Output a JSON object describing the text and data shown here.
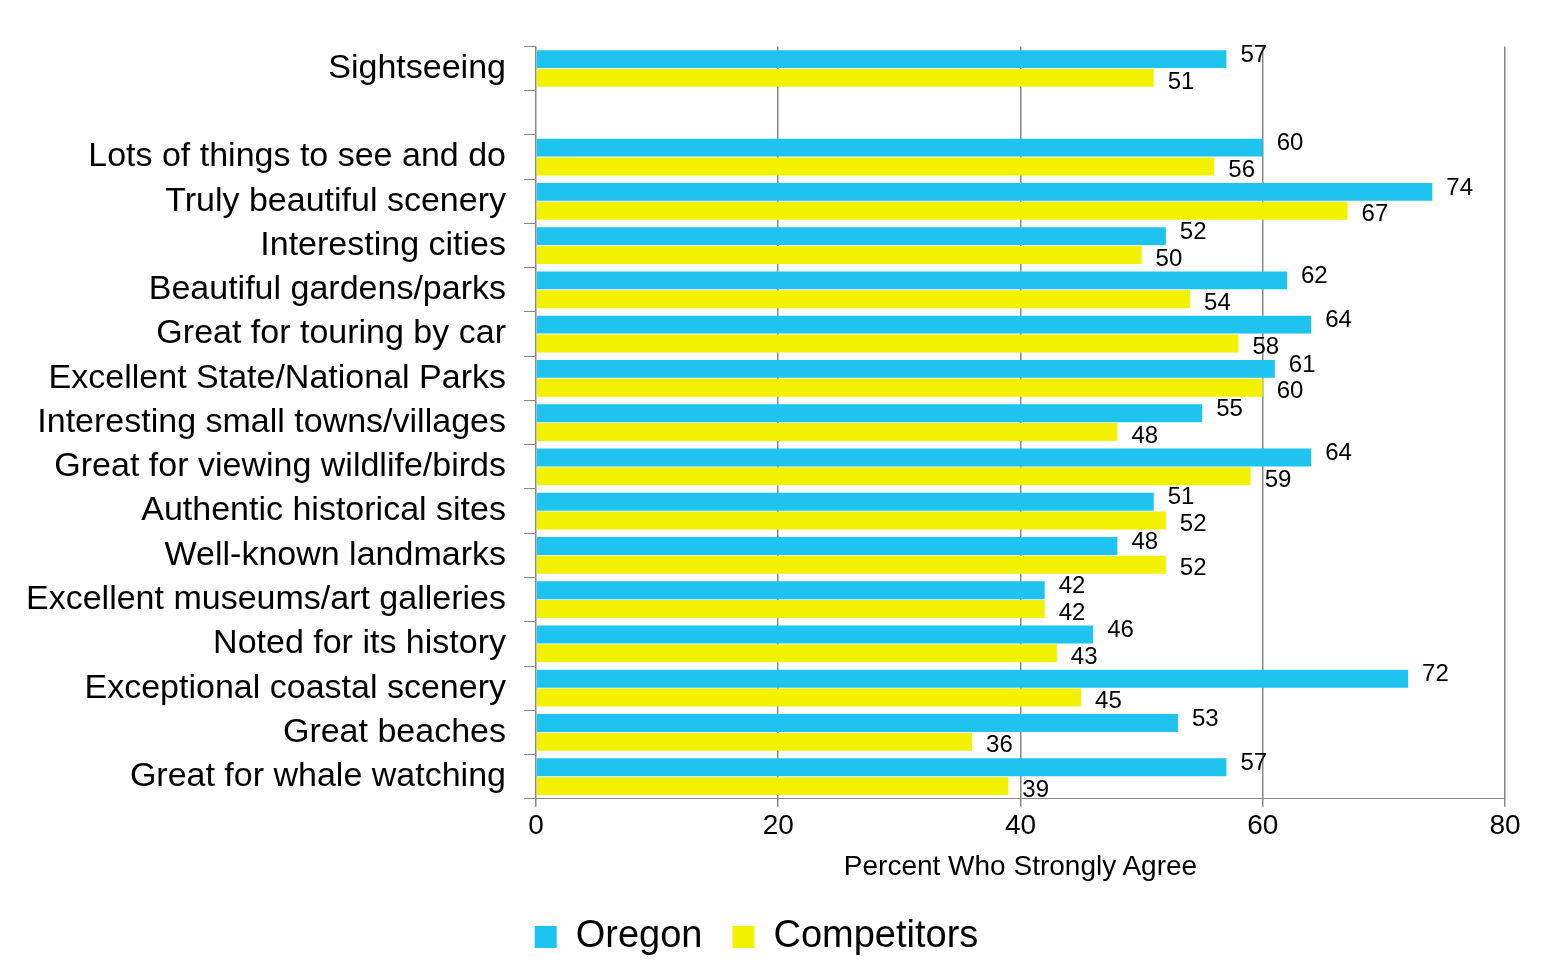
{
  "chart_data": {
    "type": "bar",
    "orientation": "horizontal",
    "xlabel": "Percent Who Strongly Agree",
    "categories": [
      "Sightseeing",
      null,
      "Lots of things to see and do",
      "Truly beautiful scenery",
      "Interesting cities",
      "Beautiful gardens/parks",
      "Great for touring by car",
      "Excellent State/National Parks",
      "Interesting small towns/villages",
      "Great for viewing wildlife/birds",
      "Authentic historical sites",
      "Well-known landmarks",
      "Excellent museums/art galleries",
      "Noted for its history",
      "Exceptional coastal scenery",
      "Great beaches",
      "Great for whale watching"
    ],
    "series": [
      {
        "name": "Oregon",
        "color": "#1ec3ef",
        "values": [
          57,
          null,
          60,
          74,
          52,
          62,
          64,
          61,
          55,
          64,
          51,
          48,
          42,
          46,
          72,
          53,
          57
        ]
      },
      {
        "name": "Competitors",
        "color": "#f2f200",
        "values": [
          51,
          null,
          56,
          67,
          50,
          54,
          58,
          60,
          48,
          59,
          52,
          52,
          42,
          43,
          45,
          36,
          39
        ]
      }
    ],
    "xlim": [
      0,
      80
    ],
    "xticks": [
      0,
      20,
      40,
      60,
      80
    ],
    "grid": "x",
    "legend": "bottom",
    "data_labels": true
  }
}
